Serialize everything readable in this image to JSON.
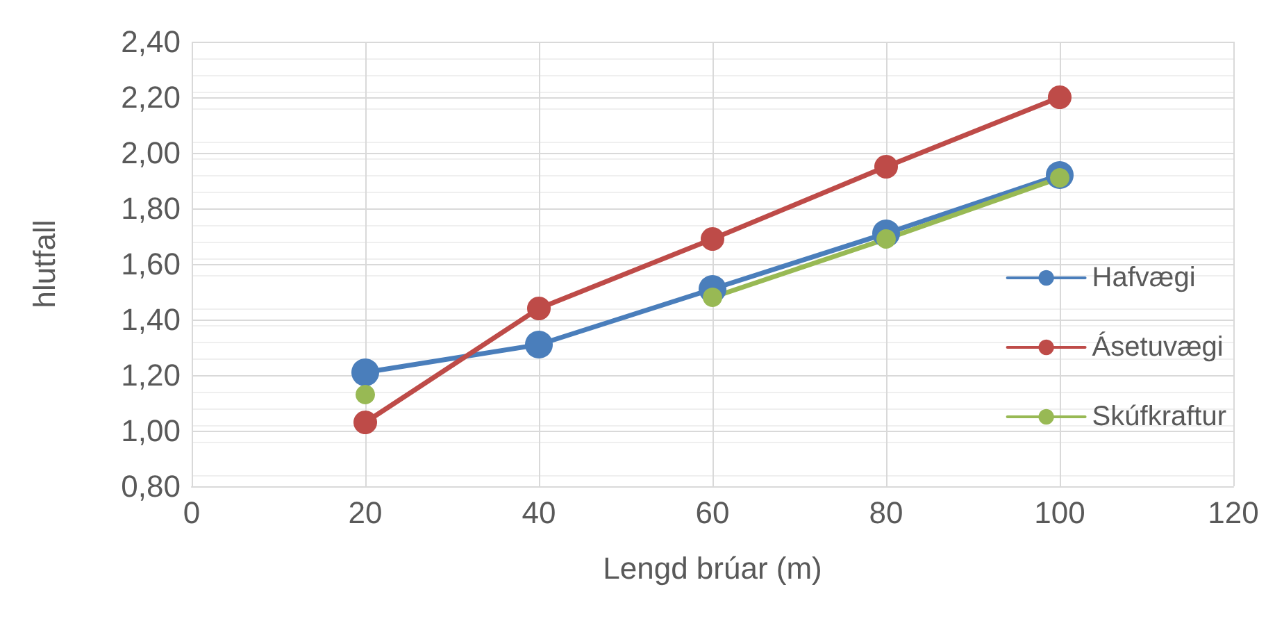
{
  "chart_data": {
    "type": "line",
    "xlabel": "Lengd brúar (m)",
    "ylabel": "hlutfall",
    "x": [
      20,
      40,
      60,
      80,
      100
    ],
    "series": [
      {
        "name": "Hafvægi",
        "color": "#4a7ebb",
        "values": [
          1.21,
          1.31,
          1.51,
          1.71,
          1.92
        ]
      },
      {
        "name": "Ásetuvægi",
        "color": "#be4b48",
        "values": [
          1.03,
          1.44,
          1.69,
          1.95,
          2.2
        ]
      },
      {
        "name": "Skúfkraftur",
        "color": "#98b954",
        "values": [
          1.13,
          null,
          1.48,
          1.69,
          1.91
        ]
      }
    ],
    "xlim": [
      0,
      120
    ],
    "xticks": [
      0,
      20,
      40,
      60,
      80,
      100,
      120
    ],
    "ylim": [
      0.8,
      2.4
    ],
    "yticks": [
      {
        "value": 0.8,
        "label": "0,80"
      },
      {
        "value": 1.0,
        "label": "1,00"
      },
      {
        "value": 1.2,
        "label": "1,20"
      },
      {
        "value": 1.4,
        "label": "1,40"
      },
      {
        "value": 1.6,
        "label": "1,60"
      },
      {
        "value": 1.8,
        "label": "1,80"
      },
      {
        "value": 2.0,
        "label": "2,00"
      },
      {
        "value": 2.2,
        "label": "2,20"
      },
      {
        "value": 2.4,
        "label": "2,40"
      }
    ],
    "grid": true,
    "legend": "right",
    "marker": "circle",
    "line_style": "solid"
  }
}
